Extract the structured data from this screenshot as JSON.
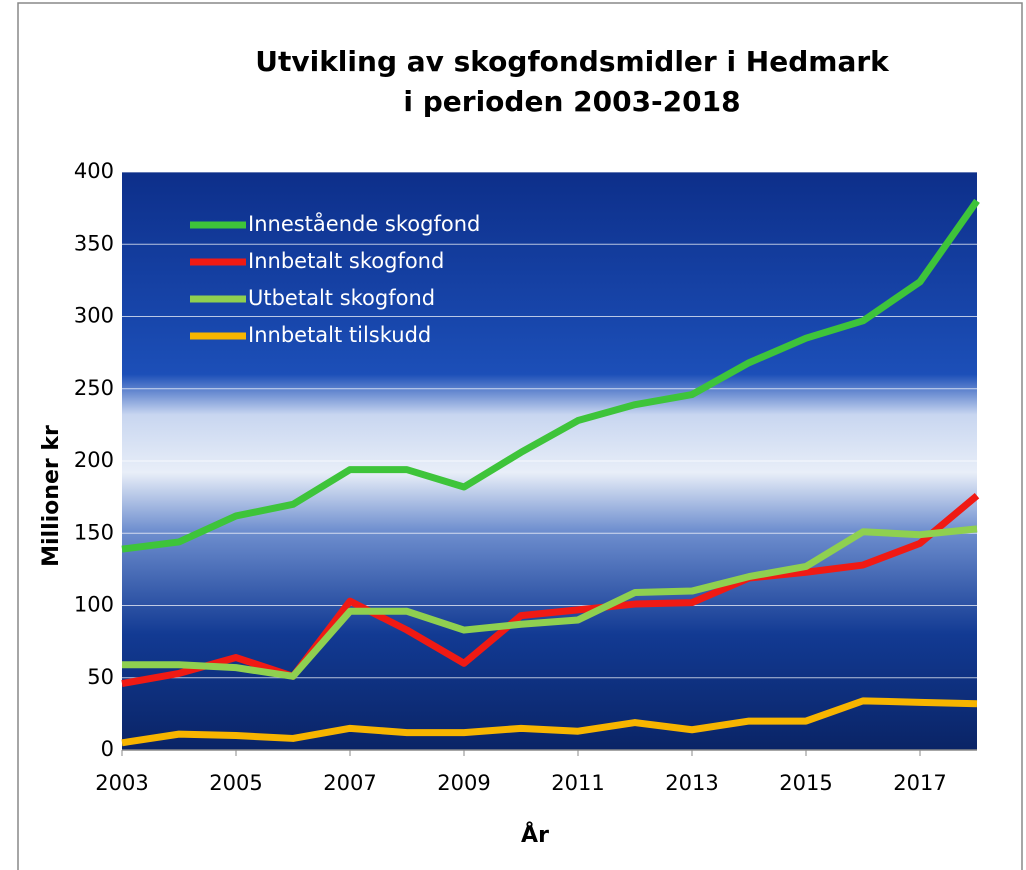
{
  "chart_data": {
    "type": "line",
    "title": [
      "Utvikling av skogfondsmidler i Hedmark",
      "i perioden 2003-2018"
    ],
    "x_label": "År",
    "y_label": "Millioner kr",
    "x": [
      2003,
      2004,
      2005,
      2006,
      2007,
      2008,
      2009,
      2010,
      2011,
      2012,
      2013,
      2014,
      2015,
      2016,
      2017,
      2018
    ],
    "xlim": [
      2003,
      2018
    ],
    "xticks": [
      2003,
      2005,
      2007,
      2009,
      2011,
      2013,
      2015,
      2017
    ],
    "ylim": [
      0,
      400
    ],
    "yticks": [
      0,
      50,
      100,
      150,
      200,
      250,
      300,
      350,
      400
    ],
    "grid": true,
    "legend": "upper left",
    "series": [
      {
        "name": "Innestående skogfond",
        "color": "#3ec43a",
        "values": [
          139,
          144,
          162,
          170,
          194,
          194,
          182,
          206,
          228,
          239,
          246,
          268,
          285,
          297,
          324,
          380
        ]
      },
      {
        "name": "Innbetalt skogfond",
        "color": "#f01a14",
        "values": [
          46,
          53,
          64,
          51,
          103,
          83,
          60,
          93,
          97,
          101,
          102,
          119,
          123,
          128,
          143,
          176
        ]
      },
      {
        "name": "Utbetalt skogfond",
        "color": "#8fd050",
        "values": [
          59,
          59,
          57,
          51,
          96,
          96,
          83,
          87,
          90,
          109,
          110,
          120,
          127,
          151,
          149,
          153
        ]
      },
      {
        "name": "Innbetalt tilskudd",
        "color": "#f7b500",
        "values": [
          5,
          11,
          10,
          8,
          15,
          12,
          12,
          15,
          13,
          19,
          14,
          20,
          20,
          34,
          33,
          32
        ]
      }
    ]
  }
}
